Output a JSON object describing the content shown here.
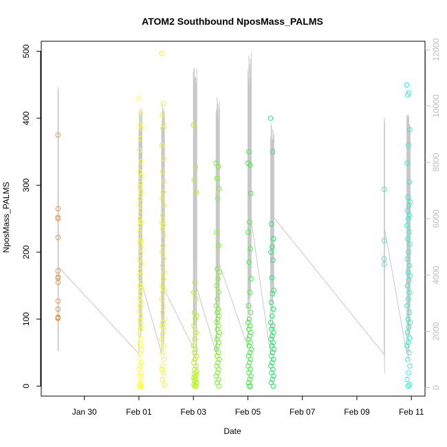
{
  "chart_data": {
    "type": "scatter",
    "title": "ATOM2 Southbound NposMass_PALMS",
    "xlabel": "Date",
    "ylabel": "NposMass_PALMS",
    "x_axis": {
      "range": [
        "2017-01-28T10:00",
        "2017-02-11T12:00"
      ],
      "ticks": [
        {
          "value": "2017-01-30",
          "label": "Jan 30"
        },
        {
          "value": "2017-02-01",
          "label": "Feb 01"
        },
        {
          "value": "2017-02-03",
          "label": "Feb 03"
        },
        {
          "value": "2017-02-05",
          "label": "Feb 05"
        },
        {
          "value": "2017-02-07",
          "label": "Feb 07"
        },
        {
          "value": "2017-02-09",
          "label": "Feb 09"
        },
        {
          "value": "2017-02-11",
          "label": "Feb 11"
        }
      ]
    },
    "y_axis_left": {
      "range": [
        -15,
        515
      ],
      "ticks": [
        0,
        100,
        200,
        300,
        400,
        500
      ]
    },
    "y_axis_right": {
      "range": [
        -300,
        12300
      ],
      "ticks": [
        0,
        2000,
        4000,
        6000,
        8000,
        10000,
        12000
      ],
      "color": "#bdbdbd"
    },
    "grid": false,
    "legend": "none",
    "line_color": "#c8c8c8",
    "flights": [
      {
        "start": "2017-01-29T00:40",
        "end": "2017-01-29T00:50",
        "color": "#f5923e",
        "values": [
          375,
          265,
          252,
          250,
          222,
          172,
          163,
          161,
          155,
          127,
          115,
          103,
          102,
          101
        ],
        "alt_max": 10900
      },
      {
        "start": "2017-02-01T00:00",
        "end": "2017-02-01T02:40",
        "color": "#ffff33",
        "values": [
          430,
          408,
          390,
          385,
          370,
          352,
          335,
          320,
          313,
          303,
          298,
          290,
          280,
          270,
          262,
          250,
          245,
          240,
          230,
          218,
          215,
          205,
          198,
          190,
          182,
          172,
          165,
          155,
          150,
          145,
          138,
          131,
          126,
          120,
          112,
          105,
          98,
          90,
          85,
          78,
          70,
          62,
          55,
          48,
          42,
          35,
          30,
          25,
          20,
          15,
          10,
          5,
          2,
          0,
          0
        ],
        "alt_max": 10000
      },
      {
        "start": "2017-02-01T20:00",
        "end": "2017-02-01T22:30",
        "color": "#eaf53a",
        "values": [
          497,
          422,
          405,
          390,
          385,
          360,
          340,
          320,
          305,
          290,
          280,
          270,
          255,
          245,
          240,
          235,
          225,
          210,
          200,
          190,
          180,
          170,
          160,
          150,
          145,
          140,
          130,
          120,
          110,
          100,
          95,
          90,
          85,
          78,
          70,
          60,
          50,
          40,
          30,
          25,
          20,
          10,
          2
        ],
        "alt_max": 10100
      },
      {
        "start": "2017-02-03T00:00",
        "end": "2017-02-03T03:00",
        "color": "#b8f22a",
        "values": [
          390,
          327,
          308,
          290,
          155,
          140,
          130,
          110,
          105,
          100,
          90,
          80,
          70,
          60,
          55,
          50,
          45,
          40,
          35,
          30,
          25,
          22,
          20,
          18,
          16,
          14,
          12,
          10,
          8,
          6,
          4,
          2,
          0,
          0
        ],
        "alt_max": 11700
      },
      {
        "start": "2017-02-03T20:00",
        "end": "2017-02-03T23:00",
        "color": "#7df22a",
        "values": [
          333,
          328,
          310,
          295,
          280,
          230,
          210,
          175,
          170,
          160,
          150,
          140,
          130,
          120,
          115,
          110,
          105,
          100,
          95,
          90,
          85,
          80,
          75,
          70,
          65,
          60,
          55,
          50,
          45,
          40,
          35,
          30,
          25,
          20,
          15,
          10,
          5,
          0
        ],
        "alt_max": 10500
      },
      {
        "start": "2017-02-05T00:00",
        "end": "2017-02-05T03:00",
        "color": "#40ef40",
        "values": [
          333,
          330,
          350,
          288,
          245,
          230,
          205,
          185,
          160,
          140,
          120,
          110,
          100,
          95,
          90,
          85,
          80,
          75,
          70,
          65,
          60,
          55,
          50,
          45,
          40,
          35,
          30,
          25,
          20,
          15,
          10,
          5,
          0,
          0
        ],
        "alt_max": 11900
      },
      {
        "start": "2017-02-05T20:00",
        "end": "2017-02-05T23:00",
        "color": "#22e866",
        "values": [
          400,
          350,
          242,
          220,
          208,
          200,
          188,
          162,
          143,
          138,
          125,
          115,
          105,
          95,
          90,
          85,
          80,
          75,
          70,
          65,
          60,
          55,
          50,
          45,
          40,
          35,
          30,
          25,
          20,
          15,
          10,
          5,
          0
        ],
        "alt_max": 9700
      },
      {
        "start": "2017-02-10T00:00",
        "end": "2017-02-10T00:10",
        "color": "#40f0b8",
        "values": [
          294,
          217,
          190,
          182
        ],
        "alt_max": 9800
      },
      {
        "start": "2017-02-10T20:00",
        "end": "2017-02-10T23:00",
        "color": "#33f0c8",
        "values": [
          450,
          438,
          435,
          383,
          360,
          333,
          305,
          282,
          275,
          270,
          262,
          255,
          250,
          240,
          230,
          220,
          212,
          200,
          190,
          180,
          170,
          165,
          158,
          150,
          140,
          130,
          120,
          110,
          100,
          95,
          88,
          80,
          72,
          65,
          60,
          50,
          40,
          30,
          20,
          10,
          2,
          0
        ],
        "alt_max": 10000
      }
    ]
  }
}
